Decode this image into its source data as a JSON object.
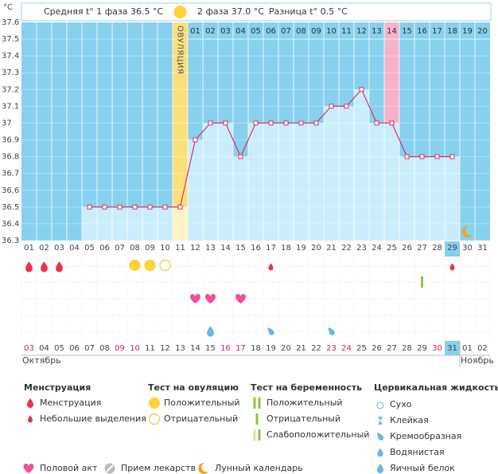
{
  "header": {
    "unit": "°C",
    "phase1": "Средняя t° 1 фаза 36.5 °C",
    "phase2": "2 фаза 37.0 °C",
    "difference": "Разница t° 0.5 °C"
  },
  "chart_data": {
    "type": "line",
    "categories": [
      "01",
      "02",
      "03",
      "04",
      "05",
      "06",
      "07",
      "08",
      "09",
      "10",
      "11",
      "12",
      "13",
      "14",
      "15",
      "16",
      "17",
      "18",
      "19",
      "20",
      "21",
      "22",
      "23",
      "24",
      "25",
      "26",
      "27",
      "28",
      "29",
      "30",
      "31"
    ],
    "values": [
      null,
      null,
      null,
      null,
      36.5,
      36.5,
      36.5,
      36.5,
      36.5,
      36.5,
      36.5,
      36.9,
      37,
      37,
      36.8,
      37,
      37,
      37,
      37,
      37,
      37.1,
      37.1,
      37.2,
      37,
      37,
      36.8,
      36.8,
      36.8,
      36.8,
      null,
      null
    ],
    "ylim": [
      36.3,
      37.6
    ],
    "yticks": [
      37.6,
      37.5,
      37.4,
      37.3,
      37.2,
      37.1,
      37,
      36.9,
      36.8,
      36.7,
      36.6,
      36.5,
      36.4,
      36.3
    ],
    "line_color": "#d6336c",
    "bar_color": "#c9edfc",
    "background": "#87d0ee",
    "ovulation": {
      "day": 11,
      "label": "ОВУЛЯЦИЯ",
      "color": "#fbe07a"
    },
    "phase2_days": [
      "01",
      "02",
      "03",
      "04",
      "05",
      "06",
      "07",
      "08",
      "09",
      "10",
      "11",
      "12",
      "13",
      "14",
      "15",
      "16",
      "17",
      "18",
      "19",
      "20"
    ],
    "phase2_start": 12,
    "highlight_day": 25,
    "highlight_color": "#f7b3c8",
    "today": 29,
    "moon_day": 30,
    "dates": [
      "03",
      "04",
      "05",
      "06",
      "07",
      "08",
      "09",
      "10",
      "11",
      "12",
      "13",
      "14",
      "15",
      "16",
      "17",
      "18",
      "19",
      "20",
      "21",
      "22",
      "23",
      "24",
      "25",
      "26",
      "27",
      "28",
      "29",
      "30",
      "31",
      "01",
      "02"
    ],
    "date_colors": [
      "#d0205a",
      "#444",
      "#444",
      "#444",
      "#444",
      "#444",
      "#d0205a",
      "#d0205a",
      "#444",
      "#444",
      "#444",
      "#444",
      "#444",
      "#d0205a",
      "#d0205a",
      "#444",
      "#444",
      "#444",
      "#444",
      "#444",
      "#d0205a",
      "#d0205a",
      "#444",
      "#444",
      "#444",
      "#444",
      "#444",
      "#d0205a",
      "#444",
      "#444",
      "#444"
    ],
    "months": [
      {
        "label": "Октябрь",
        "day": 1
      },
      {
        "label": "Ноябрь",
        "day": 30
      }
    ]
  },
  "events": {
    "menstruation": [
      1,
      2,
      3
    ],
    "spotting": [
      17,
      29
    ],
    "ovulation_positive": [
      8,
      9
    ],
    "ovulation_negative": [
      10
    ],
    "pregnancy_negative": [
      27
    ],
    "intercourse": [
      12,
      13,
      15
    ],
    "cervical_egg_white": [
      13
    ],
    "cervical_creamy": [
      17,
      21
    ]
  },
  "legend": {
    "menstruation": {
      "title": "Менструация",
      "items": [
        "Менструация",
        "Небольшие выделения"
      ]
    },
    "ovulation_test": {
      "title": "Тест на овуляцию",
      "items": [
        "Положительный",
        "Отрицательный"
      ]
    },
    "pregnancy_test": {
      "title": "Тест на беременность",
      "items": [
        "Положительный",
        "Отрицательный",
        "Слабоположительный"
      ]
    },
    "cervical": {
      "title": "Цервикальная жидкость",
      "items": [
        "Сухо",
        "Клейкая",
        "Кремообразная",
        "Водянистая",
        "Яичный белок"
      ]
    },
    "other": [
      "Половой акт",
      "Прием лекарств",
      "Лунный календарь"
    ]
  }
}
